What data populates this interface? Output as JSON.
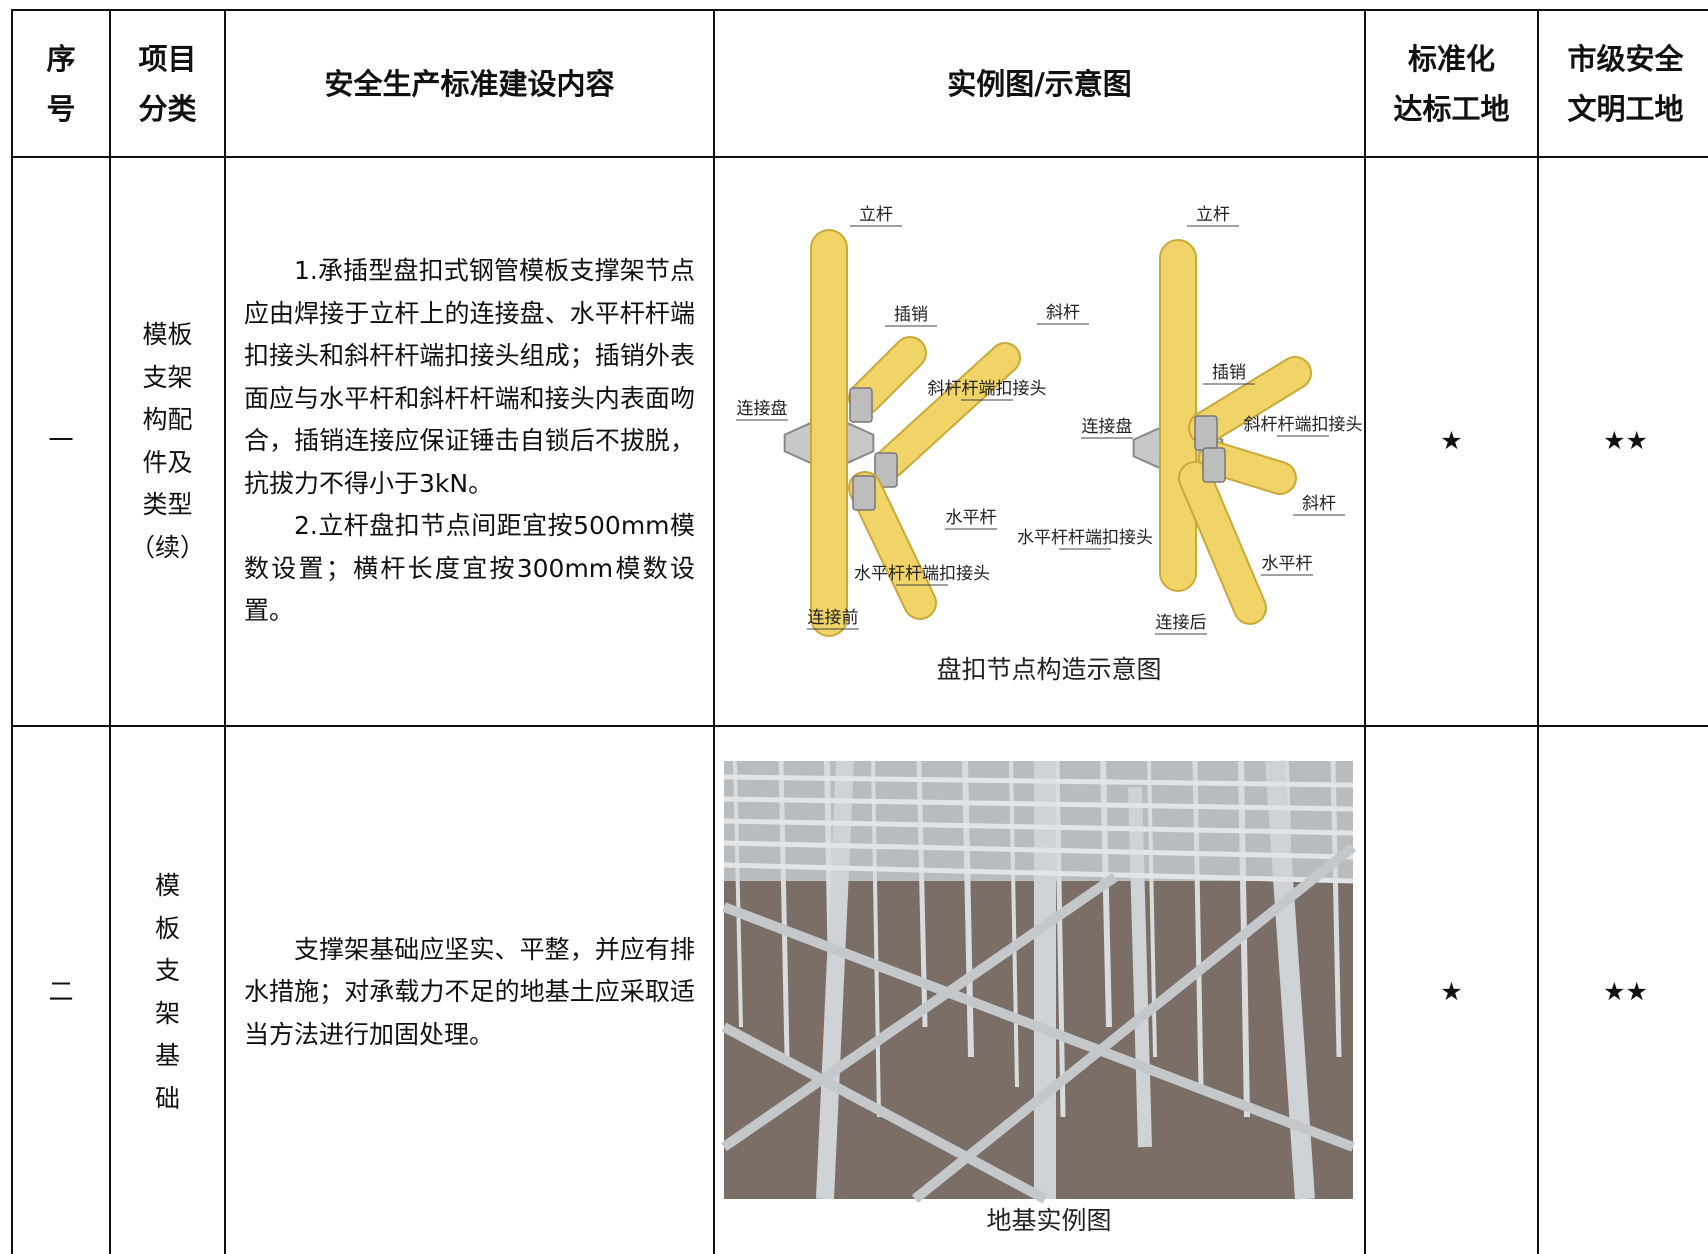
{
  "header": {
    "cells": [
      {
        "lines": [
          "序",
          "号"
        ]
      },
      {
        "lines": [
          "项目",
          "分类"
        ]
      },
      {
        "lines": [
          "安全生产标准建设内容"
        ]
      },
      {
        "lines": [
          "实例图/示意图"
        ]
      },
      {
        "lines": [
          "标准化",
          "达标工地"
        ]
      },
      {
        "lines": [
          "市级安全",
          "文明工地"
        ]
      }
    ]
  },
  "rows": [
    {
      "index": "一",
      "category": [
        "模板",
        "支架",
        "构配",
        "件及",
        "类型",
        "（续）"
      ],
      "content": [
        "1.承插型盘扣式钢管模板支撑架节点应由焊接于立杆上的连接盘、水平杆杆端扣接头和斜杆杆端扣接头组成；插销外表面应与水平杆和斜杆杆端和接头内表面吻合，插销连接应保证锤击自锁后不拔脱，抗拔力不得小于3kN。",
        "2.立杆盘扣节点间距宜按500mm模数设置；横杆长度宜按300mm模数设置。"
      ],
      "figure": {
        "labels": [
          "立杆",
          "插销",
          "斜杆",
          "斜杆杆端扣接头",
          "连接盘",
          "水平杆",
          "水平杆杆端扣接头",
          "连接前",
          "立杆",
          "插销",
          "连接盘",
          "斜杆杆端扣接头",
          "斜杆",
          "水平杆杆端扣接头",
          "水平杆",
          "连接后"
        ],
        "caption": "盘扣节点构造示意图"
      },
      "standard": "★",
      "civil": "★★"
    },
    {
      "index": "二",
      "category": [
        "模",
        "板",
        "支",
        "架",
        "基",
        "础"
      ],
      "content": [
        "支撑架基础应坚实、平整，并应有排水措施；对承载力不足的地基土应采取适当方法进行加固处理。"
      ],
      "figure": {
        "caption": "地基实例图"
      },
      "standard": "★",
      "civil": "★★"
    }
  ]
}
